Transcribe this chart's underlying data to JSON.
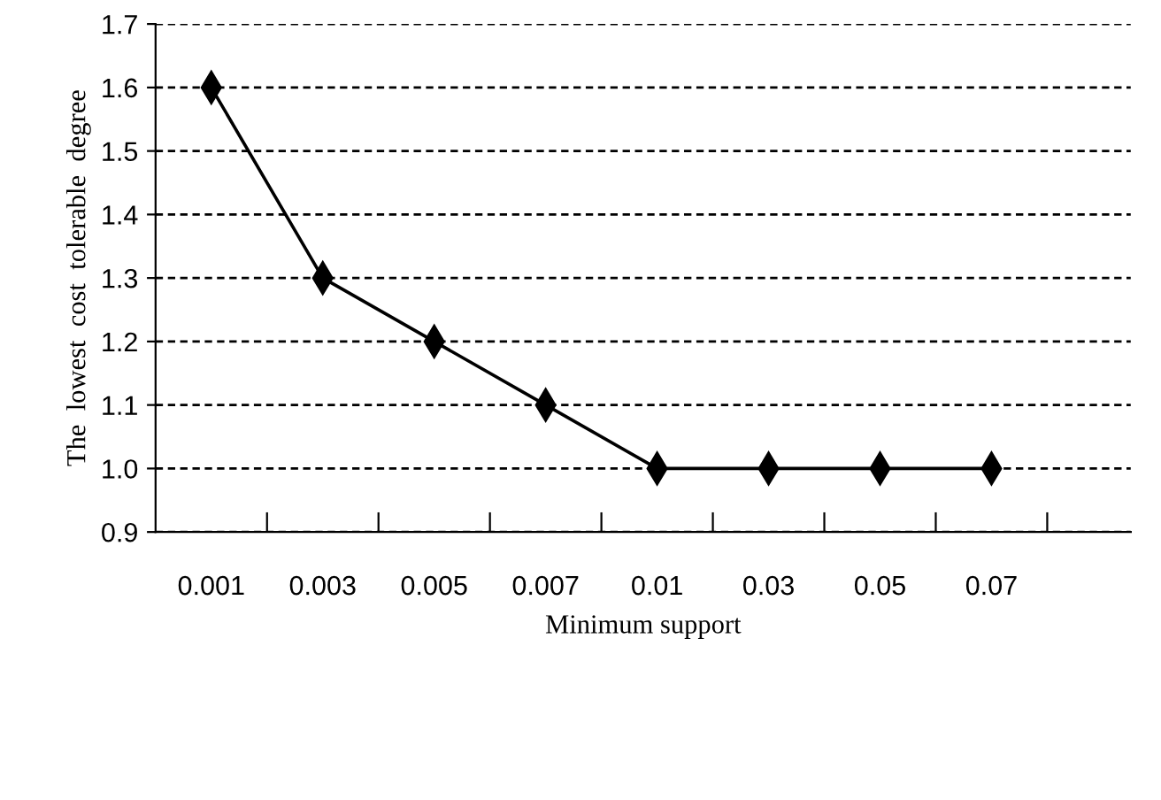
{
  "chart_data": {
    "type": "line",
    "xlabel": "Minimum support",
    "ylabel": "The  lowest  cost  tolerable  degree",
    "categories": [
      "0.001",
      "0.003",
      "0.005",
      "0.007",
      "0.01",
      "0.03",
      "0.05",
      "0.07"
    ],
    "series": [
      {
        "color": "#000000",
        "values": [
          1.6,
          1.3,
          1.2,
          1.1,
          1.0,
          1.0,
          1.0,
          1.0
        ]
      }
    ],
    "ylim": [
      0.9,
      1.7
    ],
    "yticks": [
      0.9,
      {
        "value": 1.0,
        "label": "1.0"
      },
      1.1,
      1.2,
      1.3,
      1.4,
      1.5,
      1.6,
      1.7
    ],
    "grid": "y",
    "marker": "diamond",
    "line_style": "solid"
  }
}
